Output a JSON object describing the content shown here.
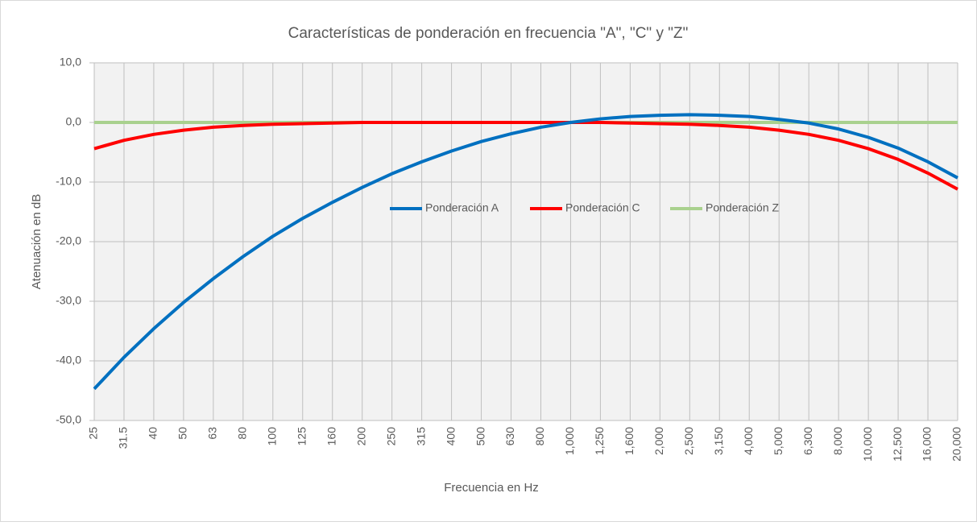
{
  "chart_data": {
    "type": "line",
    "title": "Características de ponderación  en frecuencia  \"A\", \"C\" y \"Z\"",
    "x_label": "Frecuencia en Hz",
    "y_label": "Atenuación en dB",
    "categories": [
      "25",
      "31.5",
      "40",
      "50",
      "63",
      "80",
      "100",
      "125",
      "160",
      "200",
      "250",
      "315",
      "400",
      "500",
      "630",
      "800",
      "1,000",
      "1,250",
      "1,600",
      "2,000",
      "2,500",
      "3,150",
      "4,000",
      "5,000",
      "6,300",
      "8,000",
      "10,000",
      "12,500",
      "16,000",
      "20,000"
    ],
    "series": [
      {
        "name": "Ponderación A",
        "color": "#0070c0",
        "values": [
          -44.7,
          -39.4,
          -34.6,
          -30.2,
          -26.2,
          -22.5,
          -19.1,
          -16.1,
          -13.4,
          -10.9,
          -8.6,
          -6.6,
          -4.8,
          -3.2,
          -1.9,
          -0.8,
          0,
          0.6,
          1.0,
          1.2,
          1.3,
          1.2,
          1.0,
          0.5,
          -0.1,
          -1.1,
          -2.5,
          -4.3,
          -6.6,
          -9.3
        ]
      },
      {
        "name": "Ponderación C",
        "color": "#ff0000",
        "values": [
          -4.4,
          -3.0,
          -2.0,
          -1.3,
          -0.8,
          -0.5,
          -0.3,
          -0.2,
          -0.1,
          0,
          0,
          0,
          0,
          0,
          0,
          0,
          0,
          0,
          -0.1,
          -0.2,
          -0.3,
          -0.5,
          -0.8,
          -1.3,
          -2.0,
          -3.0,
          -4.4,
          -6.2,
          -8.5,
          -11.2
        ]
      },
      {
        "name": "Ponderación Z",
        "color": "#a9d18e",
        "values": [
          0,
          0,
          0,
          0,
          0,
          0,
          0,
          0,
          0,
          0,
          0,
          0,
          0,
          0,
          0,
          0,
          0,
          0,
          0,
          0,
          0,
          0,
          0,
          0,
          0,
          0,
          0,
          0,
          0,
          0
        ]
      }
    ],
    "ylim": [
      -50,
      10
    ],
    "yticks": [
      {
        "value": -50,
        "label": "-50,0"
      },
      {
        "value": -40,
        "label": "-40,0"
      },
      {
        "value": -30,
        "label": "-30,0"
      },
      {
        "value": -20,
        "label": "-20,0"
      },
      {
        "value": -10,
        "label": "-10,0"
      },
      {
        "value": 0,
        "label": "0,0"
      },
      {
        "value": 10,
        "label": "10,0"
      }
    ],
    "grid": true
  }
}
